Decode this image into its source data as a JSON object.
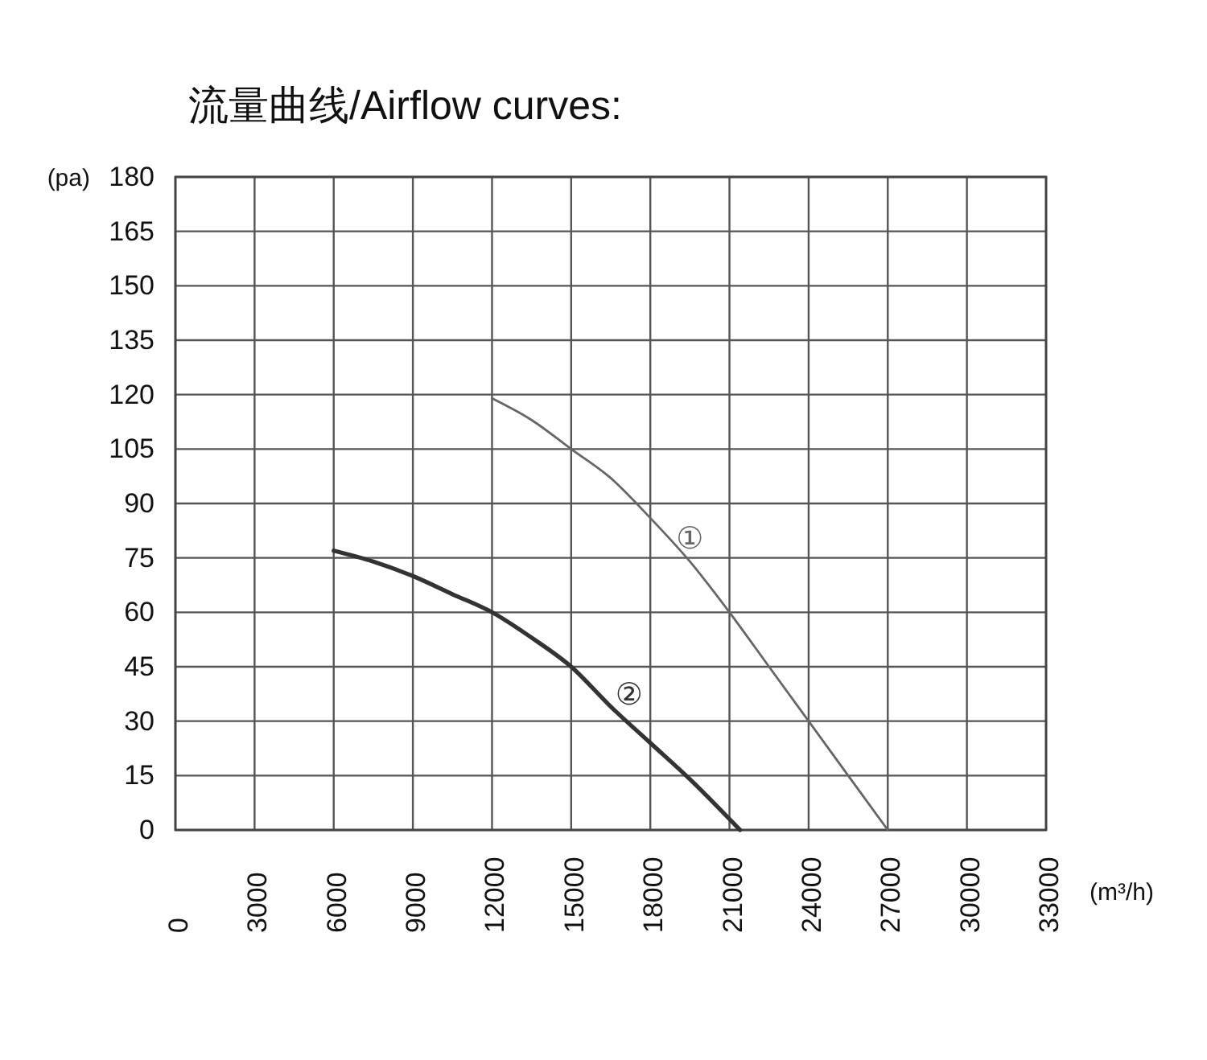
{
  "chart_data": {
    "type": "line",
    "title": "流量曲线/Airflow curves:",
    "xlabel": "(m³/h)",
    "ylabel": "(pa)",
    "xlim": [
      0,
      33000
    ],
    "xticks": [
      0,
      3000,
      6000,
      9000,
      12000,
      15000,
      18000,
      21000,
      24000,
      27000,
      30000,
      33000
    ],
    "ylim": [
      0,
      180
    ],
    "yticks": [
      0,
      15,
      30,
      45,
      60,
      75,
      90,
      105,
      120,
      135,
      150,
      165,
      180
    ],
    "grid": true,
    "marker": "none",
    "line_style": "solid",
    "series": [
      {
        "name": "①",
        "color": "#666666",
        "x": [
          12000,
          13500,
          15000,
          16500,
          18000,
          19500,
          21000,
          22500,
          24000,
          25500,
          27000
        ],
        "values": [
          119,
          113,
          105,
          97,
          86,
          74,
          60,
          45,
          30,
          15,
          0
        ]
      },
      {
        "name": "②",
        "color": "#333333",
        "x": [
          6000,
          7500,
          9000,
          10500,
          12000,
          13500,
          15000,
          16500,
          18000,
          19500,
          21400
        ],
        "values": [
          77,
          74,
          70,
          65,
          60,
          53,
          45,
          34,
          24,
          14,
          0
        ]
      }
    ]
  }
}
